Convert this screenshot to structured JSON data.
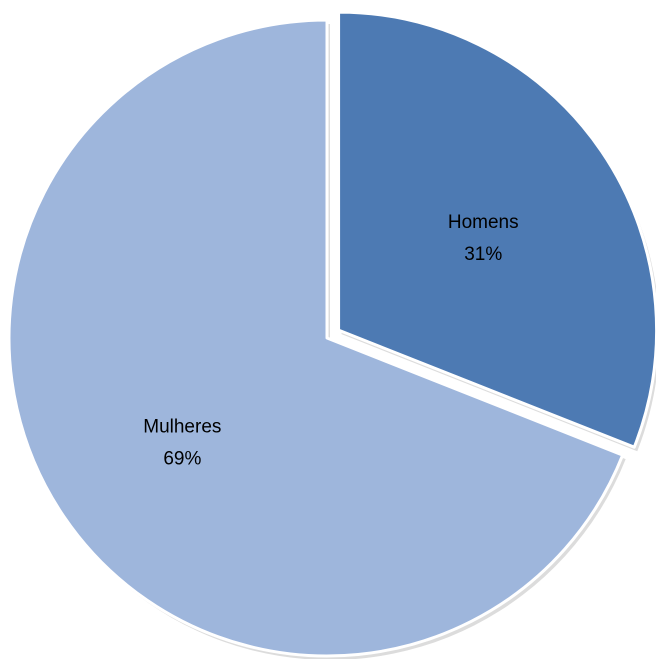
{
  "chart_data": {
    "type": "pie",
    "categories": [
      "Homens",
      "Mulheres"
    ],
    "values": [
      31,
      69
    ],
    "value_labels": [
      "31%",
      "69%"
    ],
    "colors": [
      "#4d7ab3",
      "#9eb6dc"
    ],
    "exploded_slice": "Homens",
    "start_angle_deg": 0,
    "direction": "clockwise",
    "legend": "none",
    "title": ""
  }
}
